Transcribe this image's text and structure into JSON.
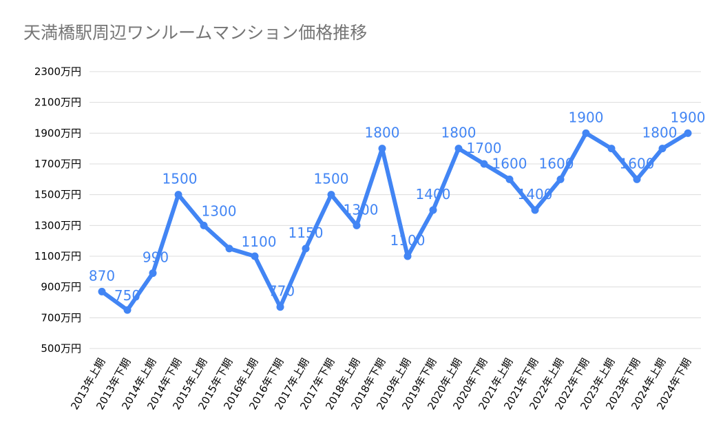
{
  "chart_data": {
    "type": "line",
    "title": "天満橋駅周辺ワンルームマンション価格推移",
    "categories": [
      "2013年上期",
      "2013年下期",
      "2014年上期",
      "2014年下期",
      "2015年上期",
      "2015年下期",
      "2016年上期",
      "2016年下期",
      "2017年上期",
      "2017年下期",
      "2018年上期",
      "2018年下期",
      "2019年上期",
      "2019年下期",
      "2020年上期",
      "2020年下期",
      "2021年上期",
      "2021年下期",
      "2022年上期",
      "2022年下期",
      "2023年上期",
      "2023年下期",
      "2024年上期",
      "2024年下期"
    ],
    "series": [
      {
        "values": [
          870,
          750,
          990,
          1500,
          1300,
          1150,
          1100,
          770,
          1150,
          1500,
          1300,
          1800,
          1100,
          1400,
          1800,
          1700,
          1600,
          1400,
          1600,
          1900,
          1800,
          1600,
          1800,
          1900
        ],
        "data_labels": [
          "870",
          "750",
          "990",
          "1500",
          "1300",
          "",
          "1100",
          "770",
          "1150",
          "1500",
          "1300",
          "1800",
          "1100",
          "1400",
          "1800",
          "1700",
          "1600",
          "1400",
          "1600",
          "1900",
          "",
          "1600",
          "1800",
          "1900"
        ]
      }
    ],
    "yticks": [
      "500万円",
      "700万円",
      "900万円",
      "1100万円",
      "1300万円",
      "1500万円",
      "1700万円",
      "1900万円",
      "2100万円",
      "2300万円"
    ],
    "ylim": [
      500,
      2300
    ],
    "grid": true,
    "color": "#4285f4"
  }
}
